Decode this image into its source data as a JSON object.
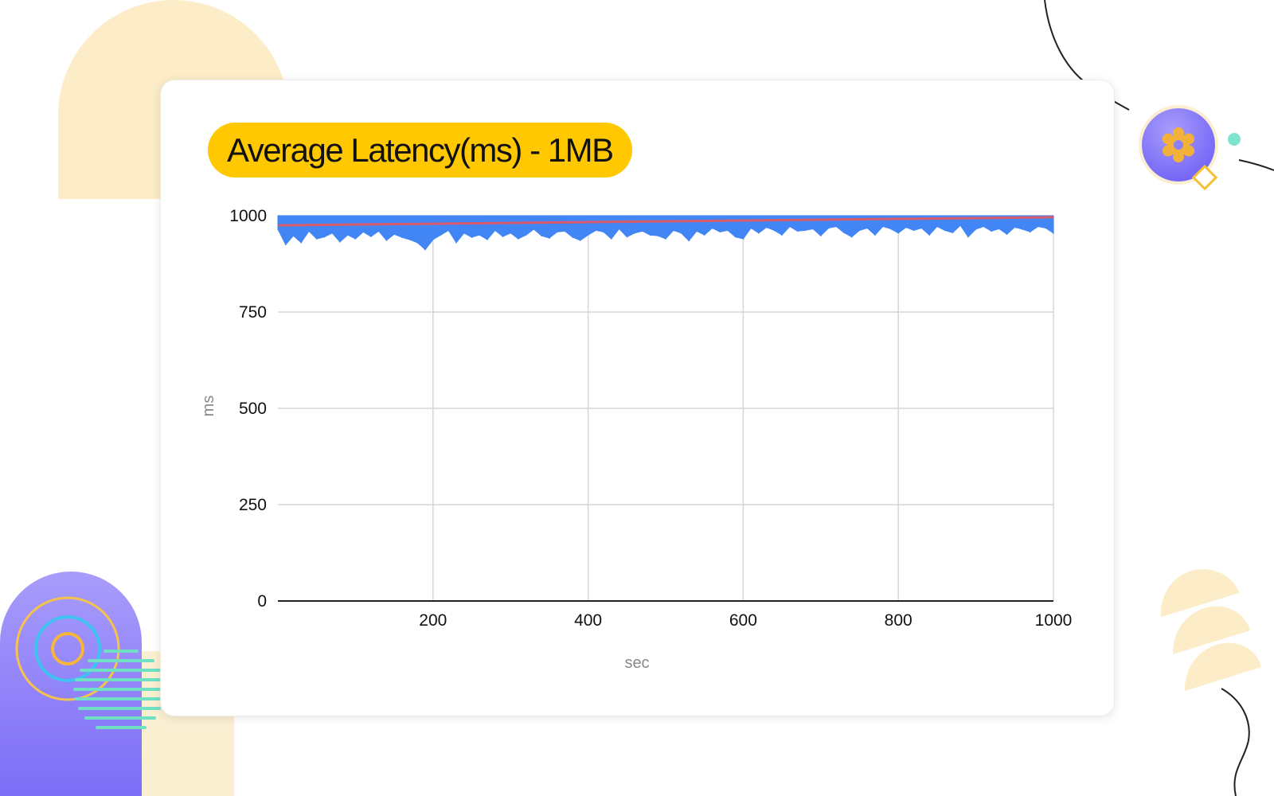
{
  "chart_data": {
    "type": "area",
    "title": "Average Latency(ms) - 1MB",
    "xlabel": "sec",
    "ylabel": "ms",
    "xlim": [
      0,
      1000
    ],
    "ylim": [
      0,
      1000
    ],
    "x_ticks": [
      200,
      400,
      600,
      800,
      1000
    ],
    "y_ticks": [
      0,
      250,
      500,
      750,
      1000
    ],
    "grid": true,
    "legend": "none",
    "series": [
      {
        "type": "area",
        "color": "#4285f4",
        "x": [
          0,
          10,
          20,
          30,
          40,
          50,
          60,
          70,
          80,
          90,
          100,
          110,
          120,
          130,
          140,
          150,
          160,
          170,
          180,
          190,
          200,
          210,
          220,
          230,
          240,
          250,
          260,
          270,
          280,
          290,
          300,
          310,
          320,
          330,
          340,
          350,
          360,
          370,
          380,
          390,
          400,
          410,
          420,
          430,
          440,
          450,
          460,
          470,
          480,
          490,
          500,
          510,
          520,
          530,
          540,
          550,
          560,
          570,
          580,
          590,
          600,
          610,
          620,
          630,
          640,
          650,
          660,
          670,
          680,
          690,
          700,
          710,
          720,
          730,
          740,
          750,
          760,
          770,
          780,
          790,
          800,
          810,
          820,
          830,
          840,
          850,
          860,
          870,
          880,
          890,
          900,
          910,
          920,
          930,
          940,
          950,
          960,
          970,
          980,
          990,
          1000
        ],
        "values": [
          965,
          925,
          948,
          930,
          960,
          940,
          945,
          955,
          932,
          950,
          940,
          958,
          946,
          960,
          936,
          952,
          944,
          938,
          930,
          912,
          938,
          950,
          962,
          930,
          955,
          944,
          950,
          938,
          962,
          946,
          955,
          940,
          950,
          965,
          948,
          942,
          958,
          960,
          944,
          936,
          950,
          962,
          958,
          940,
          966,
          945,
          955,
          960,
          950,
          948,
          940,
          962,
          955,
          935,
          960,
          950,
          968,
          958,
          962,
          945,
          940,
          968,
          955,
          970,
          962,
          950,
          972,
          960,
          962,
          966,
          948,
          968,
          972,
          956,
          945,
          962,
          968,
          950,
          972,
          966,
          955,
          970,
          962,
          968,
          950,
          972,
          962,
          956,
          975,
          945,
          965,
          972,
          960,
          966,
          952,
          970,
          965,
          958,
          972,
          968,
          955
        ]
      },
      {
        "type": "line",
        "color": "#d95b6b",
        "x": [
          0,
          1000
        ],
        "values": [
          975,
          996
        ]
      }
    ]
  }
}
